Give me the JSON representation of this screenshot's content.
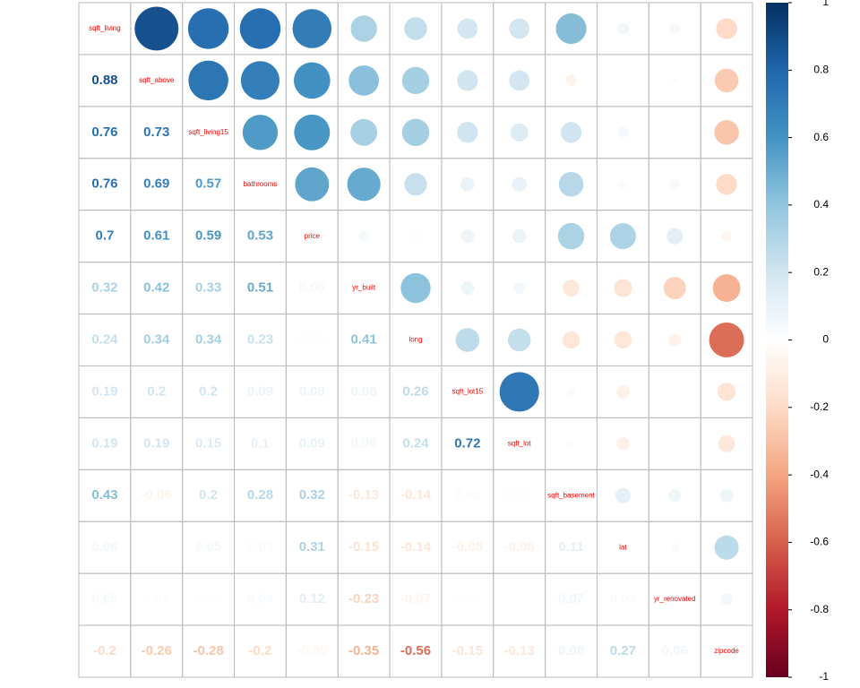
{
  "chart_data": {
    "type": "corrplot",
    "variables": [
      "sqft_living",
      "sqft_above",
      "sqft_living15",
      "bathrooms",
      "price",
      "yr_built",
      "long",
      "sqft_lot15",
      "sqft_lot",
      "sqft_basement",
      "lat",
      "yr_renovated",
      "zipcode"
    ],
    "values": [
      [],
      [
        0.88
      ],
      [
        0.76,
        0.73
      ],
      [
        0.76,
        0.69,
        0.57
      ],
      [
        0.7,
        0.61,
        0.59,
        0.53
      ],
      [
        0.32,
        0.42,
        0.33,
        0.51,
        0.05
      ],
      [
        0.24,
        0.34,
        0.34,
        0.23,
        0.02,
        0.41
      ],
      [
        0.19,
        0.2,
        0.2,
        0.09,
        0.08,
        0.08,
        0.26
      ],
      [
        0.19,
        0.19,
        0.15,
        0.1,
        0.09,
        0.06,
        0.24,
        0.72
      ],
      [
        0.43,
        -0.06,
        0.2,
        0.28,
        0.32,
        -0.13,
        -0.14,
        0.03,
        0.02
      ],
      [
        0.06,
        0,
        0.05,
        0.03,
        0.31,
        -0.15,
        -0.14,
        -0.08,
        -0.08,
        0.11
      ],
      [
        0.05,
        0.02,
        0.01,
        0.04,
        0.12,
        -0.23,
        -0.07,
        0.01,
        0,
        0.07,
        0.03
      ],
      [
        -0.2,
        -0.26,
        -0.28,
        -0.2,
        -0.05,
        -0.35,
        -0.56,
        -0.15,
        -0.13,
        0.08,
        0.27,
        0.06
      ]
    ],
    "ylim": [
      -1,
      1
    ],
    "yticks": [
      1,
      0.8,
      0.6,
      0.4,
      0.2,
      0,
      -0.2,
      -0.4,
      -0.6,
      -0.8,
      -1
    ],
    "colormap": [
      "#67001F",
      "#B2182B",
      "#D6604D",
      "#F4A582",
      "#FDDBC7",
      "#FFFFFF",
      "#D1E5F0",
      "#92C5DE",
      "#4393C3",
      "#2166AC",
      "#053061"
    ],
    "label_color": "#FF0000"
  }
}
